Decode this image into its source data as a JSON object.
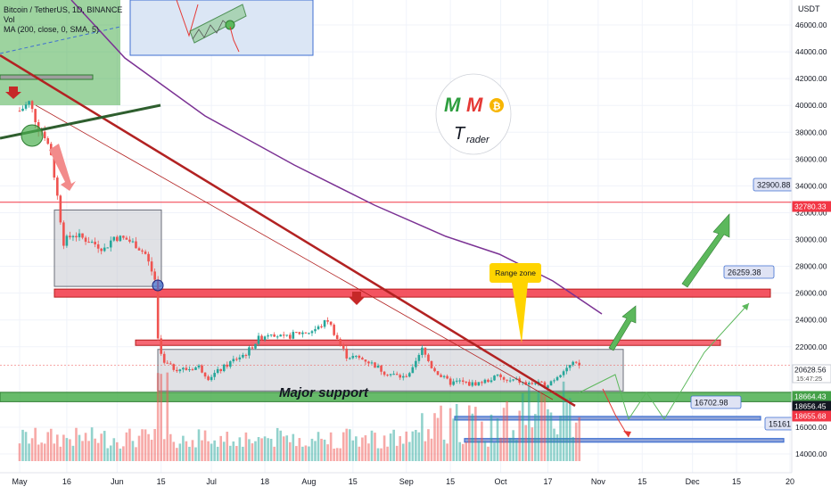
{
  "header": {
    "symbol": "Bitcoin / TetherUS, 1D, BINANCE",
    "vol": "Vol",
    "ma": "MA (200, close, 0, SMA, 5)"
  },
  "currency": "USDT",
  "colors": {
    "bull": "#26a69a",
    "bear": "#ef5350",
    "ma": "#7b3294",
    "red_zone": "#f23645",
    "support": "#4caf50",
    "range_box": "#b2b5be",
    "blue_box": "#3f6fd1",
    "arrow_green": "#5cb85c",
    "trendline": "#b22222",
    "callout": "#ffd400"
  },
  "labels": {
    "major_support": "Major support",
    "range_zone": "Range zone",
    "logo_m1": "M",
    "logo_m2": "M",
    "logo_coin": "₿",
    "logo_t": "T",
    "logo_trader": "rader"
  },
  "chart_data": {
    "type": "candlestick",
    "ylim": [
      13000,
      47000
    ],
    "yticks": [
      {
        "v": 46000,
        "t": "46000.00"
      },
      {
        "v": 44000,
        "t": "44000.00"
      },
      {
        "v": 42000,
        "t": "42000.00"
      },
      {
        "v": 40000,
        "t": "40000.00"
      },
      {
        "v": 38000,
        "t": "38000.00"
      },
      {
        "v": 36000,
        "t": "36000.00"
      },
      {
        "v": 34000,
        "t": "34000.00"
      },
      {
        "v": 32000,
        "t": "32000.00"
      },
      {
        "v": 30000,
        "t": "30000.00"
      },
      {
        "v": 28000,
        "t": "28000.00"
      },
      {
        "v": 26000,
        "t": "26000.00"
      },
      {
        "v": 24000,
        "t": "24000.00"
      },
      {
        "v": 22000,
        "t": "22000.00"
      },
      {
        "v": 16000,
        "t": "16000.00"
      },
      {
        "v": 14000,
        "t": "14000.00"
      }
    ],
    "xticks": [
      {
        "d": 0,
        "t": "May"
      },
      {
        "d": 15,
        "t": "16"
      },
      {
        "d": 31,
        "t": "Jun"
      },
      {
        "d": 45,
        "t": "15"
      },
      {
        "d": 61,
        "t": "Jul"
      },
      {
        "d": 78,
        "t": "18"
      },
      {
        "d": 92,
        "t": "Aug"
      },
      {
        "d": 106,
        "t": "15"
      },
      {
        "d": 123,
        "t": "Sep"
      },
      {
        "d": 137,
        "t": "15"
      },
      {
        "d": 153,
        "t": "Oct"
      },
      {
        "d": 168,
        "t": "17"
      },
      {
        "d": 184,
        "t": "Nov"
      },
      {
        "d": 198,
        "t": "15"
      },
      {
        "d": 214,
        "t": "Dec"
      },
      {
        "d": 228,
        "t": "15"
      },
      {
        "d": 245,
        "t": "20"
      }
    ],
    "price_badges": [
      {
        "v": 32780.33,
        "t": "32780.33",
        "bg": "#f23645",
        "fg": "#ffffff"
      },
      {
        "v": 20628.56,
        "t": "20628.56",
        "bg": "#ffffff",
        "fg": "#131722",
        "sub": "15:47:25"
      },
      {
        "v": 18664.43,
        "t": "18664.43",
        "bg": "#43a047",
        "fg": "#ffffff"
      },
      {
        "v": 18656.45,
        "t": "18656.45",
        "bg": "#131722",
        "fg": "#ffffff"
      },
      {
        "v": 18655.68,
        "t": "18655.68",
        "bg": "#f23645",
        "fg": "#ffffff"
      }
    ],
    "targets": [
      {
        "v": 32900.88,
        "t": "32900.88"
      },
      {
        "v": 26259.38,
        "t": "26259.38"
      },
      {
        "v": 16702.98,
        "t": "16702.98"
      },
      {
        "v": 15161,
        "t": "15161."
      }
    ],
    "levels": {
      "range_high": 21800,
      "range_low": 18700,
      "red_zone_high": 26300,
      "red_zone_low": 25700,
      "mini_red_high": 22500,
      "mini_red_low": 22100,
      "support_high": 18600,
      "support_low": 17900,
      "hline": 32780.33
    }
  }
}
